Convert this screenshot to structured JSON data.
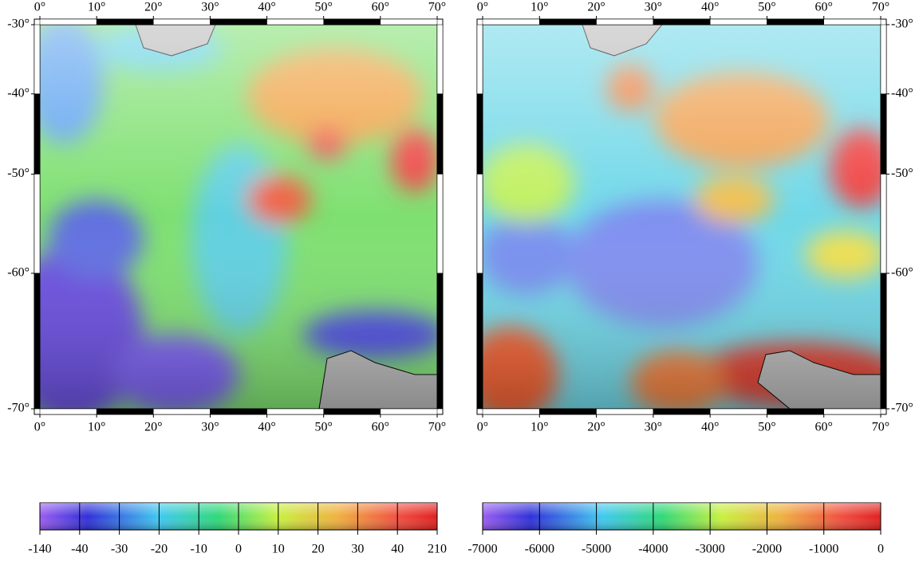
{
  "maps": [
    {
      "lon_ticks": [
        {
          "value": 0,
          "label": "0°"
        },
        {
          "value": 10,
          "label": "10°"
        },
        {
          "value": 20,
          "label": "20°"
        },
        {
          "value": 30,
          "label": "30°"
        },
        {
          "value": 40,
          "label": "40°"
        },
        {
          "value": 50,
          "label": "50°"
        },
        {
          "value": 60,
          "label": "60°"
        },
        {
          "value": 70,
          "label": "70°"
        }
      ],
      "lat_ticks": [
        {
          "value": -30,
          "label": "-30°"
        },
        {
          "value": -40,
          "label": "-40°"
        },
        {
          "value": -50,
          "label": "-50°"
        },
        {
          "value": -60,
          "label": "-60°"
        },
        {
          "value": -70,
          "label": "-70°"
        }
      ],
      "colorbar": [
        -140,
        -40,
        -30,
        -20,
        -10,
        0,
        10,
        20,
        30,
        40,
        210
      ]
    },
    {
      "lon_ticks": [
        {
          "value": 0,
          "label": "0°"
        },
        {
          "value": 10,
          "label": "10°"
        },
        {
          "value": 20,
          "label": "20°"
        },
        {
          "value": 30,
          "label": "30°"
        },
        {
          "value": 40,
          "label": "40°"
        },
        {
          "value": 50,
          "label": "50°"
        },
        {
          "value": 60,
          "label": "60°"
        },
        {
          "value": 70,
          "label": "70°"
        }
      ],
      "lat_ticks": [
        {
          "value": -30,
          "label": "-30°"
        },
        {
          "value": -40,
          "label": "-40°"
        },
        {
          "value": -50,
          "label": "-50°"
        },
        {
          "value": -60,
          "label": "-60°"
        },
        {
          "value": -70,
          "label": "-70°"
        }
      ],
      "colorbar": [
        -7000,
        -6000,
        -5000,
        -4000,
        -3000,
        -2000,
        -1000,
        0
      ]
    }
  ]
}
